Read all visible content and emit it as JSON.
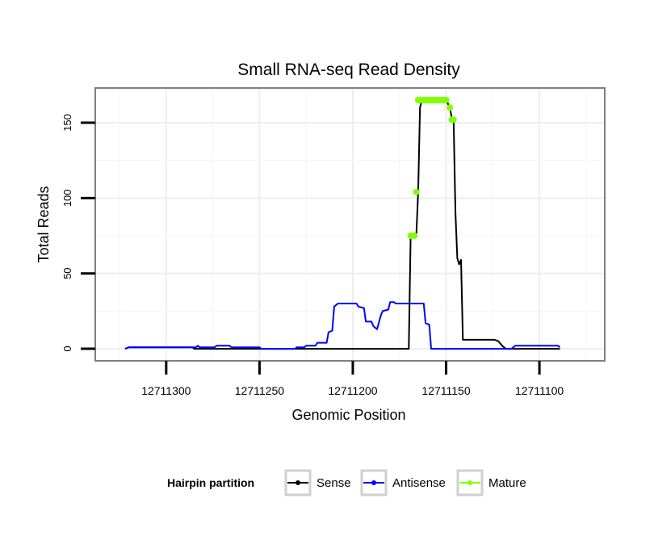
{
  "chart_data": {
    "type": "line",
    "title": "Small RNA-seq Read Density",
    "xlabel": "Genomic Position",
    "ylabel": "Total Reads",
    "xlim": [
      12711338,
      12711065
    ],
    "ylim": [
      -8,
      173
    ],
    "x_reversed": true,
    "x_ticks": [
      12711300,
      12711250,
      12711200,
      12711150,
      12711100
    ],
    "x_tick_labels": [
      "12711300",
      "12711250",
      "12711200",
      "12711150",
      "12711100"
    ],
    "y_ticks": [
      0,
      50,
      100,
      150
    ],
    "y_tick_labels": [
      "0",
      "50",
      "100",
      "150"
    ],
    "grid": true,
    "legend": {
      "title": "Hairpin partition",
      "position": "bottom",
      "entries": [
        "Sense",
        "Antisense",
        "Mature"
      ]
    },
    "series": [
      {
        "name": "Sense",
        "color": "#000000",
        "points": [
          [
            12711322,
            0
          ],
          [
            12711320,
            1
          ],
          [
            12711286,
            1
          ],
          [
            12711285,
            0
          ],
          [
            12711170,
            0
          ],
          [
            12711169,
            75
          ],
          [
            12711166,
            75
          ],
          [
            12711165,
            104
          ],
          [
            12711164,
            160
          ],
          [
            12711163,
            165
          ],
          [
            12711150,
            165
          ],
          [
            12711148,
            160
          ],
          [
            12711147,
            153
          ],
          [
            12711146,
            152
          ],
          [
            12711145,
            90
          ],
          [
            12711144,
            60
          ],
          [
            12711143,
            56
          ],
          [
            12711142,
            59
          ],
          [
            12711141,
            6
          ],
          [
            12711124,
            6
          ],
          [
            12711122,
            5
          ],
          [
            12711120,
            2
          ],
          [
            12711118,
            0
          ],
          [
            12711089,
            0
          ]
        ]
      },
      {
        "name": "Antisense",
        "color": "#0000ff",
        "points": [
          [
            12711322,
            0
          ],
          [
            12711320,
            1
          ],
          [
            12711286,
            1
          ],
          [
            12711284,
            1
          ],
          [
            12711283,
            2
          ],
          [
            12711282,
            1
          ],
          [
            12711274,
            1
          ],
          [
            12711273,
            2
          ],
          [
            12711266,
            2
          ],
          [
            12711265,
            1
          ],
          [
            12711250,
            1
          ],
          [
            12711249,
            0
          ],
          [
            12711231,
            0
          ],
          [
            12711230,
            1
          ],
          [
            12711226,
            1
          ],
          [
            12711225,
            2
          ],
          [
            12711220,
            2
          ],
          [
            12711219,
            4
          ],
          [
            12711214,
            4
          ],
          [
            12711213,
            11
          ],
          [
            12711211,
            12
          ],
          [
            12711210,
            28
          ],
          [
            12711208,
            30
          ],
          [
            12711198,
            30
          ],
          [
            12711197,
            28
          ],
          [
            12711194,
            27
          ],
          [
            12711193,
            18
          ],
          [
            12711190,
            18
          ],
          [
            12711189,
            15
          ],
          [
            12711187,
            13
          ],
          [
            12711185,
            22
          ],
          [
            12711184,
            25
          ],
          [
            12711181,
            26
          ],
          [
            12711180,
            31
          ],
          [
            12711178,
            31
          ],
          [
            12711177,
            30
          ],
          [
            12711162,
            30
          ],
          [
            12711161,
            17
          ],
          [
            12711159,
            16
          ],
          [
            12711158,
            0
          ],
          [
            12711115,
            0
          ],
          [
            12711114,
            1
          ],
          [
            12711113,
            2
          ],
          [
            12711090,
            2
          ],
          [
            12711089,
            1
          ]
        ]
      },
      {
        "name": "Mature",
        "color": "#7fff00",
        "points": [
          [
            12711169,
            75
          ],
          [
            12711167,
            75
          ],
          [
            12711166,
            104
          ],
          [
            12711165,
            165
          ],
          [
            12711164,
            165
          ],
          [
            12711163,
            165
          ],
          [
            12711162,
            165
          ],
          [
            12711161,
            165
          ],
          [
            12711160,
            165
          ],
          [
            12711159,
            165
          ],
          [
            12711158,
            165
          ],
          [
            12711157,
            165
          ],
          [
            12711156,
            165
          ],
          [
            12711155,
            165
          ],
          [
            12711154,
            165
          ],
          [
            12711153,
            165
          ],
          [
            12711152,
            165
          ],
          [
            12711151,
            165
          ],
          [
            12711150,
            165
          ],
          [
            12711148,
            160
          ],
          [
            12711147,
            152
          ],
          [
            12711146,
            152
          ]
        ]
      }
    ]
  }
}
